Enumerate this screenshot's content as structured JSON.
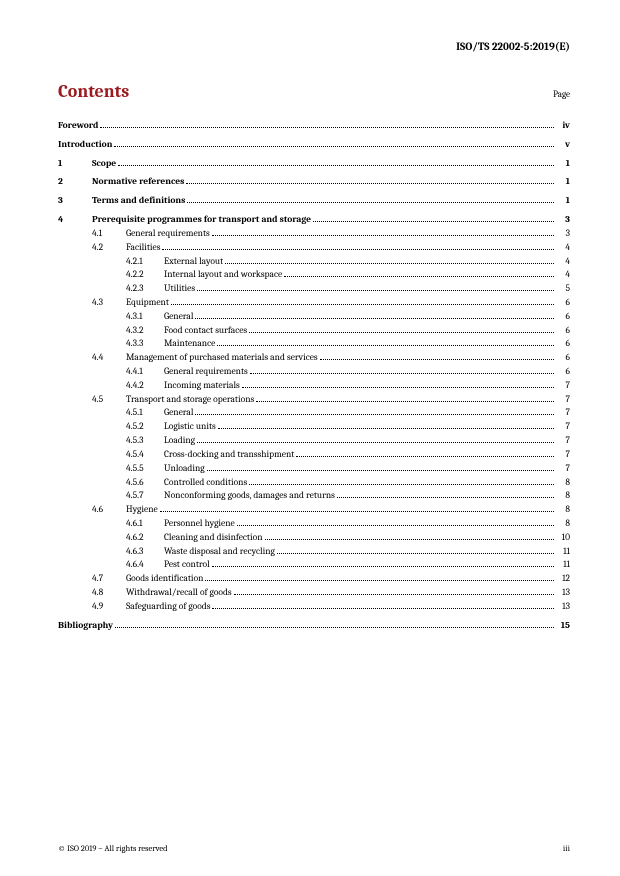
{
  "doc_id": "ISO/TS 22002-5:2019(E)",
  "contents_heading": "Contents",
  "page_label": "Page",
  "footer_left": "© ISO 2019 – All rights reserved",
  "footer_right": "iii",
  "entries": [
    {
      "level": 0,
      "num": "",
      "sub": "",
      "subsub": "",
      "title": "Foreword",
      "page": "iv",
      "bold": true,
      "topgap": false
    },
    {
      "level": 0,
      "num": "",
      "sub": "",
      "subsub": "",
      "title": "Introduction",
      "page": "v",
      "bold": true,
      "topgap": true
    },
    {
      "level": 0,
      "num": "1",
      "sub": "",
      "subsub": "",
      "title": "Scope",
      "page": "1",
      "bold": true,
      "topgap": true
    },
    {
      "level": 0,
      "num": "2",
      "sub": "",
      "subsub": "",
      "title": "Normative references",
      "page": "1",
      "bold": true,
      "topgap": true
    },
    {
      "level": 0,
      "num": "3",
      "sub": "",
      "subsub": "",
      "title": "Terms and definitions",
      "page": "1",
      "bold": true,
      "topgap": true
    },
    {
      "level": 0,
      "num": "4",
      "sub": "",
      "subsub": "",
      "title": "Prerequisite programmes for transport and storage",
      "page": "3",
      "bold": true,
      "topgap": true
    },
    {
      "level": 1,
      "num": "",
      "sub": "4.1",
      "subsub": "",
      "title": "General requirements",
      "page": "3",
      "bold": false,
      "topgap": false
    },
    {
      "level": 1,
      "num": "",
      "sub": "4.2",
      "subsub": "",
      "title": "Facilities",
      "page": "4",
      "bold": false,
      "topgap": false
    },
    {
      "level": 2,
      "num": "",
      "sub": "",
      "subsub": "4.2.1",
      "title": "External layout",
      "page": "4",
      "bold": false,
      "topgap": false
    },
    {
      "level": 2,
      "num": "",
      "sub": "",
      "subsub": "4.2.2",
      "title": "Internal layout and workspace",
      "page": "4",
      "bold": false,
      "topgap": false
    },
    {
      "level": 2,
      "num": "",
      "sub": "",
      "subsub": "4.2.3",
      "title": "Utilities",
      "page": "5",
      "bold": false,
      "topgap": false
    },
    {
      "level": 1,
      "num": "",
      "sub": "4.3",
      "subsub": "",
      "title": "Equipment",
      "page": "6",
      "bold": false,
      "topgap": false
    },
    {
      "level": 2,
      "num": "",
      "sub": "",
      "subsub": "4.3.1",
      "title": "General",
      "page": "6",
      "bold": false,
      "topgap": false
    },
    {
      "level": 2,
      "num": "",
      "sub": "",
      "subsub": "4.3.2",
      "title": "Food contact surfaces",
      "page": "6",
      "bold": false,
      "topgap": false
    },
    {
      "level": 2,
      "num": "",
      "sub": "",
      "subsub": "4.3.3",
      "title": "Maintenance",
      "page": "6",
      "bold": false,
      "topgap": false
    },
    {
      "level": 1,
      "num": "",
      "sub": "4.4",
      "subsub": "",
      "title": "Management of purchased materials and services",
      "page": "6",
      "bold": false,
      "topgap": false
    },
    {
      "level": 2,
      "num": "",
      "sub": "",
      "subsub": "4.4.1",
      "title": "General requirements",
      "page": "6",
      "bold": false,
      "topgap": false
    },
    {
      "level": 2,
      "num": "",
      "sub": "",
      "subsub": "4.4.2",
      "title": "Incoming materials",
      "page": "7",
      "bold": false,
      "topgap": false
    },
    {
      "level": 1,
      "num": "",
      "sub": "4.5",
      "subsub": "",
      "title": "Transport and storage operations",
      "page": "7",
      "bold": false,
      "topgap": false
    },
    {
      "level": 2,
      "num": "",
      "sub": "",
      "subsub": "4.5.1",
      "title": "General",
      "page": "7",
      "bold": false,
      "topgap": false
    },
    {
      "level": 2,
      "num": "",
      "sub": "",
      "subsub": "4.5.2",
      "title": "Logistic units",
      "page": "7",
      "bold": false,
      "topgap": false
    },
    {
      "level": 2,
      "num": "",
      "sub": "",
      "subsub": "4.5.3",
      "title": "Loading",
      "page": "7",
      "bold": false,
      "topgap": false
    },
    {
      "level": 2,
      "num": "",
      "sub": "",
      "subsub": "4.5.4",
      "title": "Cross-docking and transshipment",
      "page": "7",
      "bold": false,
      "topgap": false
    },
    {
      "level": 2,
      "num": "",
      "sub": "",
      "subsub": "4.5.5",
      "title": "Unloading",
      "page": "7",
      "bold": false,
      "topgap": false
    },
    {
      "level": 2,
      "num": "",
      "sub": "",
      "subsub": "4.5.6",
      "title": "Controlled conditions",
      "page": "8",
      "bold": false,
      "topgap": false
    },
    {
      "level": 2,
      "num": "",
      "sub": "",
      "subsub": "4.5.7",
      "title": "Nonconforming goods, damages and returns",
      "page": "8",
      "bold": false,
      "topgap": false
    },
    {
      "level": 1,
      "num": "",
      "sub": "4.6",
      "subsub": "",
      "title": "Hygiene",
      "page": "8",
      "bold": false,
      "topgap": false
    },
    {
      "level": 2,
      "num": "",
      "sub": "",
      "subsub": "4.6.1",
      "title": "Personnel hygiene",
      "page": "8",
      "bold": false,
      "topgap": false
    },
    {
      "level": 2,
      "num": "",
      "sub": "",
      "subsub": "4.6.2",
      "title": "Cleaning and disinfection",
      "page": "10",
      "bold": false,
      "topgap": false
    },
    {
      "level": 2,
      "num": "",
      "sub": "",
      "subsub": "4.6.3",
      "title": "Waste disposal and recycling",
      "page": "11",
      "bold": false,
      "topgap": false
    },
    {
      "level": 2,
      "num": "",
      "sub": "",
      "subsub": "4.6.4",
      "title": "Pest control",
      "page": "11",
      "bold": false,
      "topgap": false
    },
    {
      "level": 1,
      "num": "",
      "sub": "4.7",
      "subsub": "",
      "title": "Goods identification",
      "page": "12",
      "bold": false,
      "topgap": false
    },
    {
      "level": 1,
      "num": "",
      "sub": "4.8",
      "subsub": "",
      "title": "Withdrawal/recall of goods",
      "page": "13",
      "bold": false,
      "topgap": false
    },
    {
      "level": 1,
      "num": "",
      "sub": "4.9",
      "subsub": "",
      "title": "Safeguarding of goods",
      "page": "13",
      "bold": false,
      "topgap": false
    },
    {
      "level": 0,
      "num": "",
      "sub": "",
      "subsub": "",
      "title": "Bibliography",
      "page": "15",
      "bold": true,
      "topgap": true
    }
  ]
}
